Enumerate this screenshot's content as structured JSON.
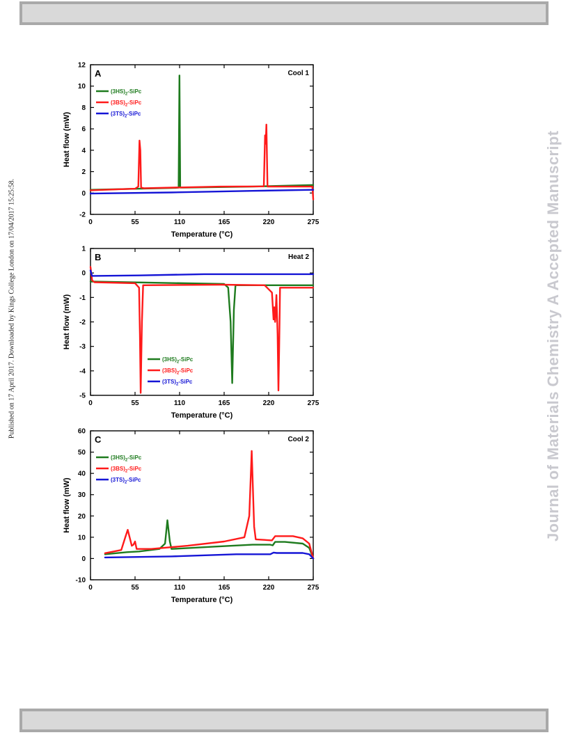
{
  "page": {
    "left_margin_text": "Published on 17 April 2017. Downloaded by Kings College London on 17/04/2017 15:25:58.",
    "watermark": "Journal of Materials Chemistry A Accepted Manuscript"
  },
  "chart_data": [
    {
      "type": "line",
      "panel_letter": "A",
      "corner_label": "Cool 1",
      "xlabel": "Temperature (°C)",
      "ylabel": "Heat flow (mW)",
      "xlim": [
        0,
        275
      ],
      "ylim": [
        -2,
        12
      ],
      "xticks": [
        0,
        55,
        110,
        165,
        220,
        275
      ],
      "yticks": [
        -2,
        0,
        2,
        4,
        6,
        8,
        10,
        12
      ],
      "legend_position": "top-left",
      "series": [
        {
          "name": "(3HS)2-SiPc",
          "color": "#1e7b1e",
          "points": [
            [
              0,
              0.3
            ],
            [
              105,
              0.48
            ],
            [
              108.8,
              0.5
            ],
            [
              109.8,
              11.0
            ],
            [
              110.8,
              0.5
            ],
            [
              115,
              0.5
            ],
            [
              200,
              0.6
            ],
            [
              275,
              0.75
            ]
          ]
        },
        {
          "name": "(3BS)2-SiPc",
          "color": "#ff1a1a",
          "points": [
            [
              0,
              0.25
            ],
            [
              55,
              0.4
            ],
            [
              59,
              0.6
            ],
            [
              60.5,
              4.9
            ],
            [
              61.5,
              4.0
            ],
            [
              62.5,
              0.5
            ],
            [
              66,
              0.45
            ],
            [
              160,
              0.6
            ],
            [
              214,
              0.62
            ],
            [
              215.5,
              5.4
            ],
            [
              216.3,
              4.6
            ],
            [
              217.2,
              6.4
            ],
            [
              218.5,
              0.6
            ],
            [
              274,
              0.6
            ],
            [
              275,
              -0.6
            ]
          ]
        },
        {
          "name": "(3TS)2-SiPc",
          "color": "#1515d6",
          "points": [
            [
              0,
              -0.05
            ],
            [
              100,
              0.05
            ],
            [
              200,
              0.2
            ],
            [
              275,
              0.3
            ]
          ]
        }
      ]
    },
    {
      "type": "line",
      "panel_letter": "B",
      "corner_label": "Heat 2",
      "xlabel": "Temperature (°C)",
      "ylabel": "Heat flow (mW)",
      "xlim": [
        0,
        275
      ],
      "ylim": [
        -5,
        1
      ],
      "xticks": [
        0,
        55,
        110,
        165,
        220,
        275
      ],
      "yticks": [
        -5,
        -4,
        -3,
        -2,
        -1,
        0,
        1
      ],
      "legend_position": "bottom-center",
      "series": [
        {
          "name": "(3HS)2-SiPc",
          "color": "#1e7b1e",
          "points": [
            [
              0,
              -0.35
            ],
            [
              165,
              -0.45
            ],
            [
              170,
              -0.6
            ],
            [
              173,
              -2.0
            ],
            [
              175,
              -4.5
            ],
            [
              177,
              -1.5
            ],
            [
              179,
              -0.5
            ],
            [
              275,
              -0.5
            ]
          ]
        },
        {
          "name": "(3BS)2-SiPc",
          "color": "#ff1a1a",
          "points": [
            [
              0,
              0.25
            ],
            [
              2,
              -0.3
            ],
            [
              5,
              -0.38
            ],
            [
              55,
              -0.42
            ],
            [
              60,
              -0.6
            ],
            [
              61,
              -2.5
            ],
            [
              62,
              -4.9
            ],
            [
              63.5,
              -2.0
            ],
            [
              65,
              -0.5
            ],
            [
              160,
              -0.48
            ],
            [
              215,
              -0.5
            ],
            [
              224,
              -0.8
            ],
            [
              226,
              -1.9
            ],
            [
              227,
              -1.4
            ],
            [
              228,
              -2.0
            ],
            [
              229.5,
              -0.9
            ],
            [
              231,
              -2.5
            ],
            [
              232,
              -4.8
            ],
            [
              233,
              -3.0
            ],
            [
              234,
              -0.6
            ],
            [
              275,
              -0.6
            ]
          ]
        },
        {
          "name": "(3TS)2-SiPc",
          "color": "#1515d6",
          "points": [
            [
              0,
              0.1
            ],
            [
              2,
              -0.12
            ],
            [
              60,
              -0.1
            ],
            [
              140,
              -0.05
            ],
            [
              275,
              -0.05
            ]
          ]
        }
      ]
    },
    {
      "type": "line",
      "panel_letter": "C",
      "corner_label": "Cool 2",
      "xlabel": "Temperature (°C)",
      "ylabel": "Heat flow (mW)",
      "xlim": [
        0,
        275
      ],
      "ylim": [
        -10,
        60
      ],
      "xticks": [
        0,
        55,
        110,
        165,
        220,
        275
      ],
      "yticks": [
        -10,
        0,
        10,
        20,
        30,
        40,
        50,
        60
      ],
      "legend_position": "top-left",
      "series": [
        {
          "name": "(3HS)2-SiPc",
          "color": "#1e7b1e",
          "points": [
            [
              18,
              2
            ],
            [
              45,
              3
            ],
            [
              60,
              3.3
            ],
            [
              85,
              4.5
            ],
            [
              92,
              7
            ],
            [
              95,
              18
            ],
            [
              98,
              8
            ],
            [
              100,
              4.5
            ],
            [
              150,
              5.5
            ],
            [
              200,
              6.5
            ],
            [
              222,
              6.5
            ],
            [
              225,
              6.2
            ],
            [
              228,
              7.8
            ],
            [
              240,
              7.8
            ],
            [
              262,
              7
            ],
            [
              270,
              5
            ],
            [
              275,
              0
            ]
          ]
        },
        {
          "name": "(3BS)2-SiPc",
          "color": "#ff1a1a",
          "points": [
            [
              18,
              2.5
            ],
            [
              38,
              4
            ],
            [
              43,
              10
            ],
            [
              46,
              13.5
            ],
            [
              49,
              9
            ],
            [
              51,
              6
            ],
            [
              53,
              6.5
            ],
            [
              55,
              8
            ],
            [
              57,
              4.5
            ],
            [
              75,
              4.5
            ],
            [
              120,
              6
            ],
            [
              165,
              8
            ],
            [
              190,
              10
            ],
            [
              196,
              20
            ],
            [
              199,
              50.5
            ],
            [
              202,
              15
            ],
            [
              204,
              9
            ],
            [
              224,
              8.5
            ],
            [
              228,
              10.5
            ],
            [
              250,
              10.5
            ],
            [
              262,
              9.5
            ],
            [
              270,
              7
            ],
            [
              275,
              0
            ]
          ]
        },
        {
          "name": "(3TS)2-SiPc",
          "color": "#1515d6",
          "points": [
            [
              18,
              0.5
            ],
            [
              100,
              1
            ],
            [
              180,
              2
            ],
            [
              222,
              2
            ],
            [
              226,
              2.8
            ],
            [
              230,
              2.6
            ],
            [
              262,
              2.6
            ],
            [
              270,
              2
            ],
            [
              275,
              0
            ]
          ]
        }
      ]
    }
  ]
}
